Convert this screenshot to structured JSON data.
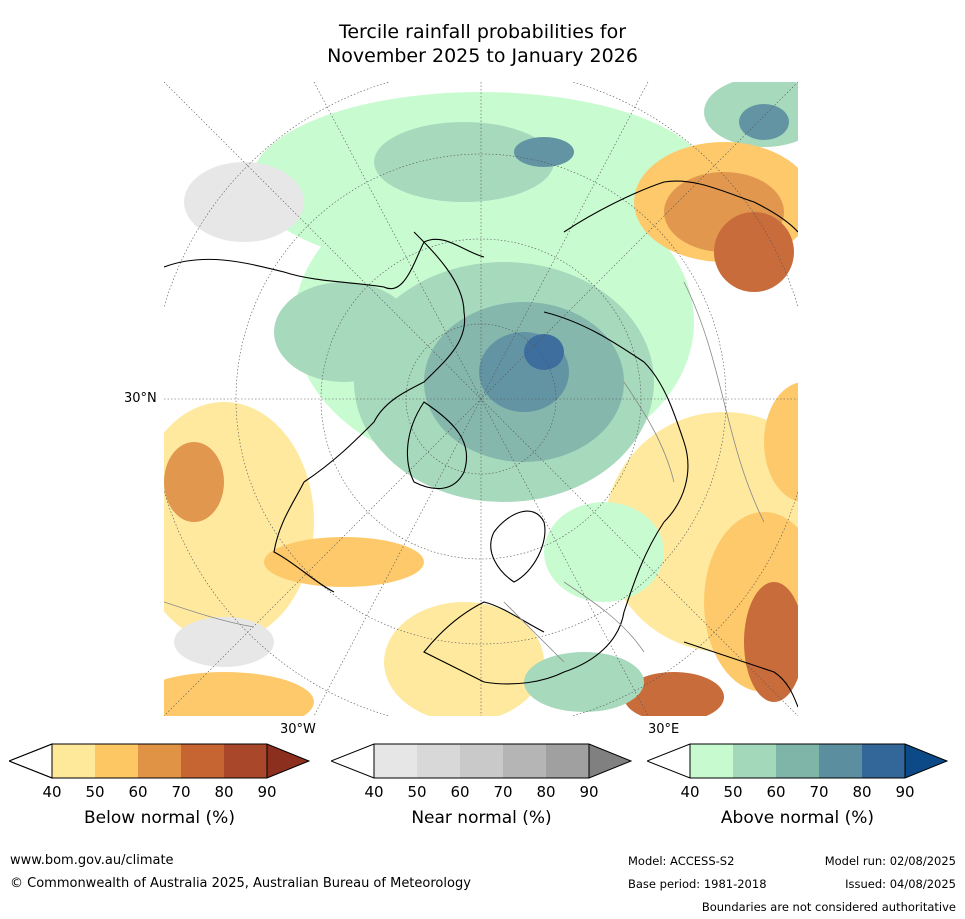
{
  "title": {
    "line1": "Tercile rainfall probabilities for",
    "line2": "November 2025 to January 2026"
  },
  "map": {
    "projection": "north-polar-stereographic",
    "lat_label": "30°N",
    "lon_labels": [
      "30°W",
      "30°E"
    ]
  },
  "colorbars": [
    {
      "title": "Below normal (%)",
      "ticks": [
        "40",
        "50",
        "60",
        "70",
        "80",
        "90"
      ],
      "colors": [
        "#ffffff",
        "#fee89a",
        "#fdc763",
        "#e09245",
        "#c66532",
        "#a9472a",
        "#8c2f1e"
      ]
    },
    {
      "title": "Near normal (%)",
      "ticks": [
        "40",
        "50",
        "60",
        "70",
        "80",
        "90"
      ],
      "colors": [
        "#ffffff",
        "#e6e6e6",
        "#d8d8d8",
        "#c9c9c9",
        "#b5b5b5",
        "#a0a0a0",
        "#808080"
      ]
    },
    {
      "title": "Above normal (%)",
      "ticks": [
        "40",
        "50",
        "60",
        "70",
        "80",
        "90"
      ],
      "colors": [
        "#ffffff",
        "#c7fbcf",
        "#a3d8ba",
        "#7fb4a8",
        "#5b8fa0",
        "#336799",
        "#0b4a86"
      ]
    }
  ],
  "footer": {
    "url": "www.bom.gov.au/climate",
    "copyright": "© Commonwealth of Australia 2025, Australian Bureau of Meteorology",
    "model": "Model: ACCESS-S2",
    "base_period": "Base period: 1981-2018",
    "model_run": "Model run: 02/08/2025",
    "issued": "Issued: 04/08/2025",
    "disclaimer": "Boundaries are not considered authoritative"
  }
}
